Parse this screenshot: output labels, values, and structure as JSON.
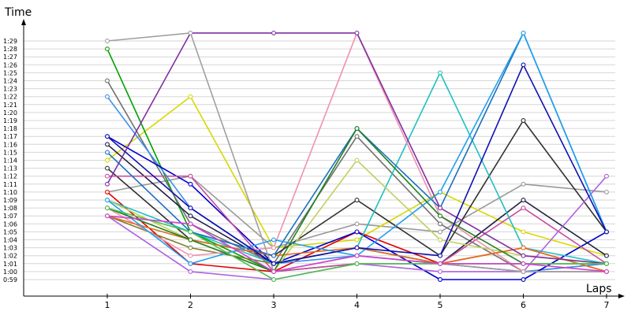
{
  "chart_data": {
    "type": "line",
    "title": "",
    "xlabel": "Laps",
    "ylabel": "Time",
    "x": [
      1,
      2,
      3,
      4,
      5,
      6,
      7
    ],
    "xlim": [
      1,
      7
    ],
    "ylim_seconds": [
      59,
      89
    ],
    "y_tick_labels": [
      "0:59",
      "1:00",
      "1:01",
      "1:02",
      "1:03",
      "1:04",
      "1:05",
      "1:06",
      "1:07",
      "1:08",
      "1:09",
      "1:10",
      "1:11",
      "1:12",
      "1:13",
      "1:14",
      "1:15",
      "1:16",
      "1:17",
      "1:18",
      "1:19",
      "1:20",
      "1:21",
      "1:22",
      "1:23",
      "1:24",
      "1:25",
      "1:26",
      "1:27",
      "1:28",
      "1:29"
    ],
    "grid": true,
    "legend": "none",
    "series": [
      {
        "color": "#9a9a9a",
        "values": [
          "1:10",
          "1:12",
          "1:03",
          "1:06",
          "1:05",
          "1:11",
          "1:10"
        ]
      },
      {
        "color": "#d8d800",
        "values": [
          "1:14",
          "1:22",
          "1:03",
          "1:04",
          "1:10",
          "1:05",
          "1:02"
        ]
      },
      {
        "color": "#e00000",
        "values": [
          "1:10",
          "1:01",
          "1:00",
          "1:05",
          "1:01",
          "1:03",
          "1:00"
        ]
      },
      {
        "color": "#00a000",
        "values": [
          "1:28",
          "1:05",
          "1:00",
          "1:01",
          "1:01",
          "1:01",
          "1:01"
        ]
      },
      {
        "color": "#707070",
        "values": [
          "1:24",
          "1:06",
          "1:01",
          "1:17",
          "1:06",
          "1:00",
          "1:01"
        ]
      },
      {
        "color": "#3a8ff0",
        "values": [
          "1:22",
          "1:08",
          "1:01",
          "1:02",
          "1:01",
          "1:00",
          "1:01"
        ]
      },
      {
        "color": "#0000cc",
        "values": [
          "1:17",
          "1:11",
          "1:01",
          "1:05",
          "0:59",
          "0:59",
          "1:05"
        ]
      },
      {
        "color": "#202040",
        "values": [
          "1:16",
          "1:07",
          "1:01",
          "1:03",
          "1:01",
          "1:09",
          "1:02"
        ]
      },
      {
        "color": "#303030",
        "values": [
          "1:13",
          "1:04",
          "1:02",
          "1:09",
          "1:02",
          "1:19",
          "1:05"
        ]
      },
      {
        "color": "#c84ba0",
        "values": [
          "1:12",
          "1:12",
          "1:00",
          "1:01",
          "1:01",
          "1:08",
          "1:01"
        ]
      },
      {
        "color": "#20c0c0",
        "values": [
          "1:09",
          "1:05",
          "1:01",
          "1:03",
          "1:25",
          "1:03",
          "1:01"
        ]
      },
      {
        "color": "#b060e0",
        "values": [
          "1:07",
          "1:00",
          "0:59",
          "1:01",
          "1:00",
          "1:00",
          "1:12"
        ]
      },
      {
        "color": "#808030",
        "values": [
          "1:07",
          "1:03",
          "1:01",
          "1:03",
          "1:01",
          "1:00",
          "1:00"
        ]
      },
      {
        "color": "#f090b0",
        "values": [
          "1:08",
          "1:02",
          "1:03",
          "1:30",
          "1:07",
          "1:00",
          "1:00"
        ]
      },
      {
        "color": "#c0d060",
        "values": [
          "1:09",
          "1:04",
          "1:00",
          "1:14",
          "1:04",
          "1:02",
          "1:01"
        ]
      },
      {
        "color": "#e07020",
        "values": [
          "1:07",
          "1:04",
          "1:02",
          "1:03",
          "1:01",
          "1:03",
          "1:00"
        ]
      },
      {
        "color": "#1a70c0",
        "values": [
          "1:15",
          "1:05",
          "1:02",
          "1:18",
          "1:08",
          "1:30",
          "1:05"
        ]
      },
      {
        "color": "#8030a0",
        "values": [
          "1:11",
          "1:30",
          "1:30",
          "1:30",
          "1:08",
          "1:02",
          "1:01"
        ]
      },
      {
        "color": "#20a0f0",
        "values": [
          "1:09",
          "1:01",
          "1:04",
          "1:02",
          "1:10",
          "1:30",
          "1:05"
        ]
      },
      {
        "color": "#208020",
        "values": [
          "1:08",
          "1:04",
          "1:00",
          "1:18",
          "1:07",
          "1:01",
          "1:01"
        ]
      },
      {
        "color": "#a0a0a0",
        "values": [
          "1:29",
          "1:30",
          "1:00",
          "1:02",
          "1:01",
          "1:00",
          "1:00"
        ]
      },
      {
        "color": "#1010b0",
        "values": [
          "1:17",
          "1:08",
          "1:01",
          "1:03",
          "1:02",
          "1:26",
          "1:05"
        ]
      },
      {
        "color": "#50c050",
        "values": [
          "1:08",
          "1:05",
          "0:59",
          "1:01",
          "1:01",
          "1:01",
          "1:01"
        ]
      },
      {
        "color": "#d040d0",
        "values": [
          "1:07",
          "1:06",
          "1:00",
          "1:02",
          "1:01",
          "1:01",
          "1:00"
        ]
      }
    ]
  }
}
